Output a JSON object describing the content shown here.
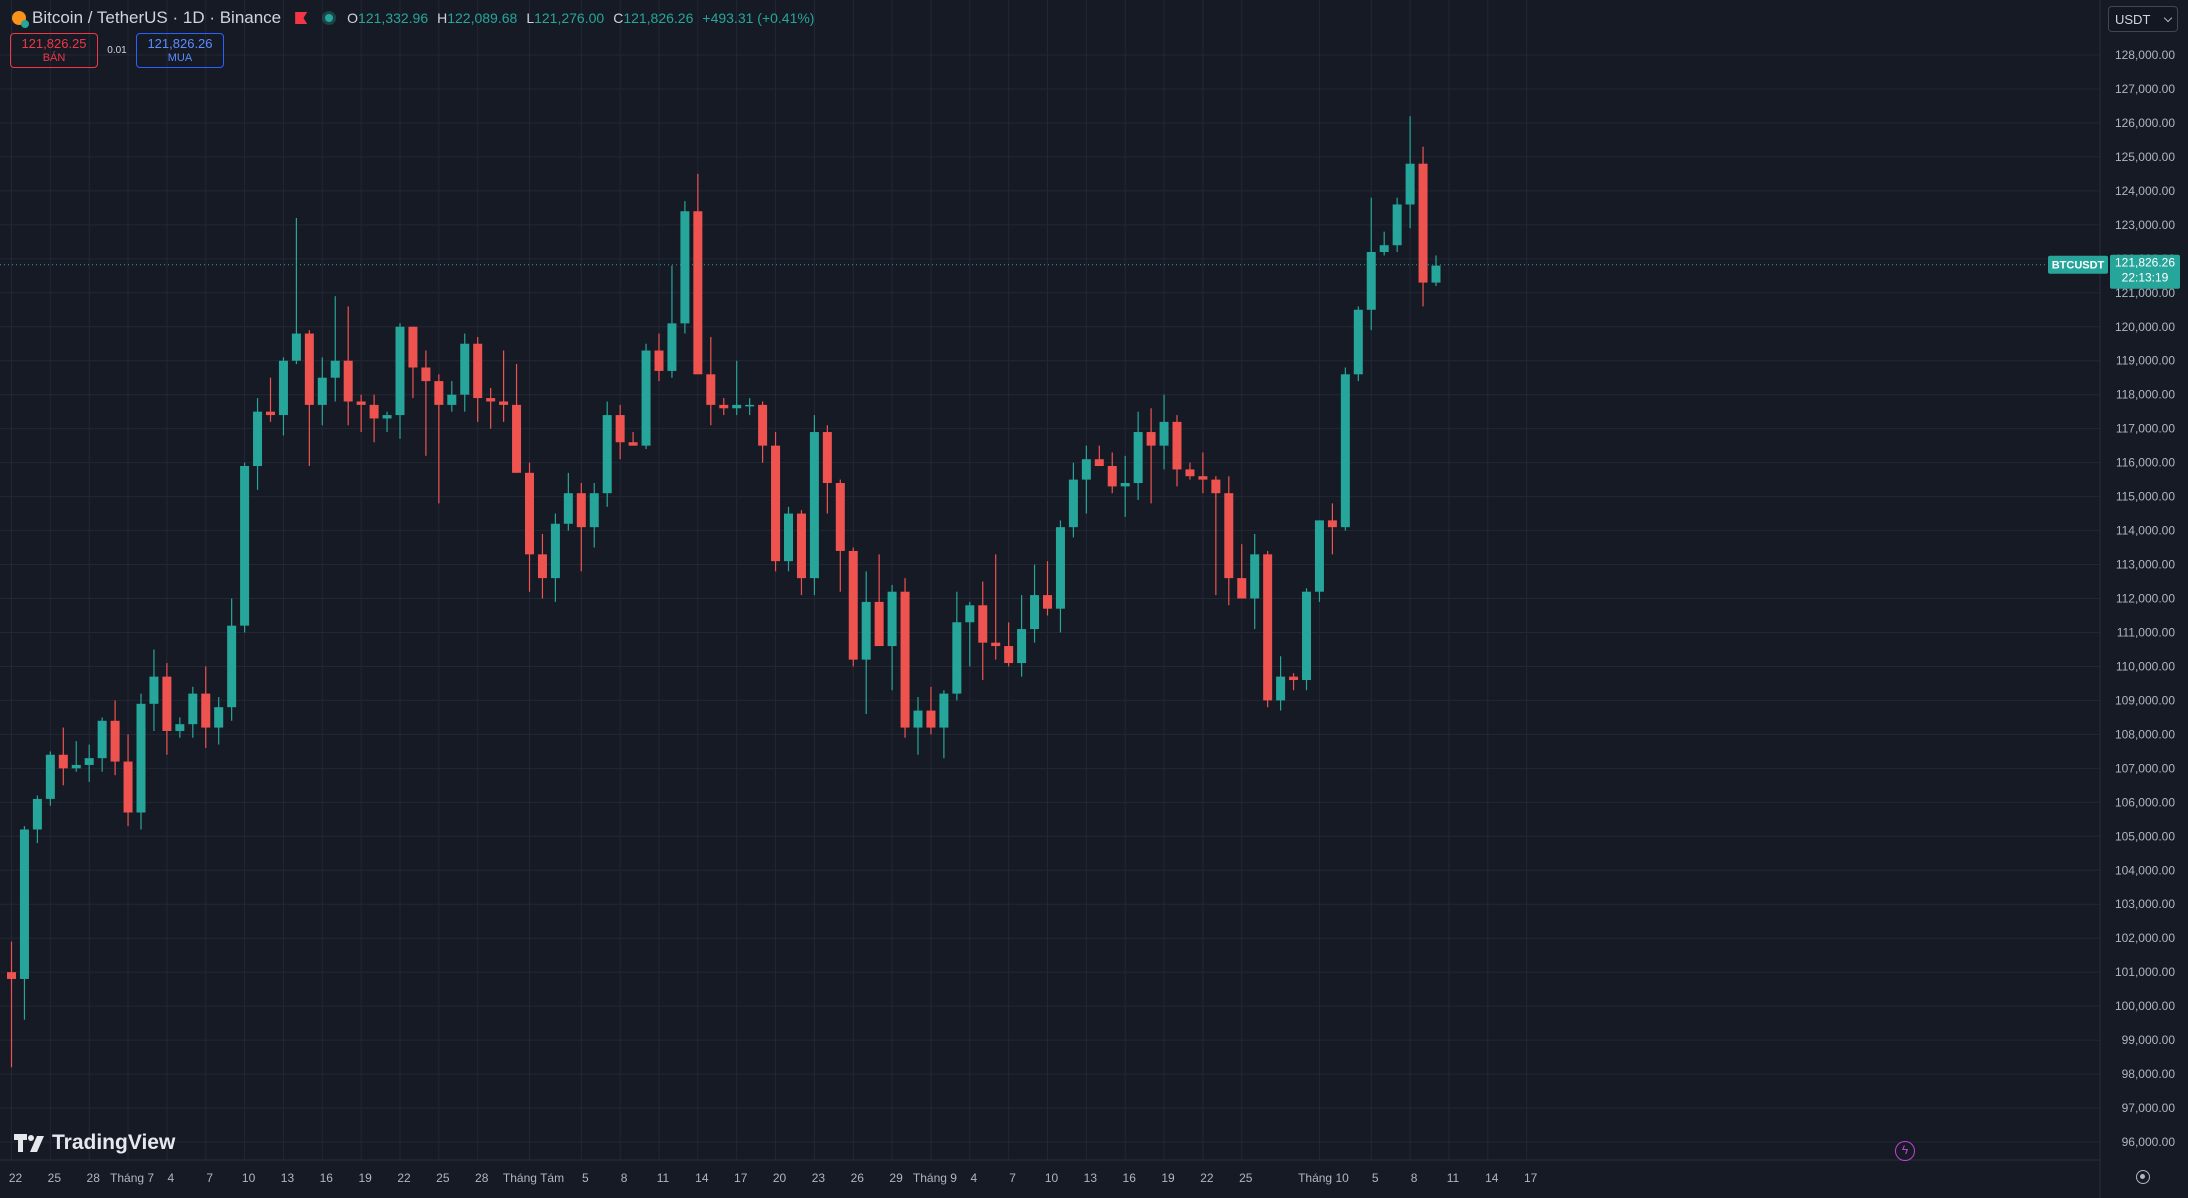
{
  "header": {
    "symbol_title": "Bitcoin / TetherUS · 1D · Binance",
    "ohlc": {
      "o_label": "O",
      "o_value": "121,332.96",
      "h_label": "H",
      "h_value": "122,089.68",
      "l_label": "L",
      "l_value": "121,276.00",
      "c_label": "C",
      "c_value": "121,826.26",
      "change": "+493.31 (+0.41%)"
    }
  },
  "trade": {
    "sell_price": "121,826.25",
    "sell_label": "BÁN",
    "spread": "0.01",
    "buy_price": "121,826.26",
    "buy_label": "MUA"
  },
  "currency_select": {
    "value": "USDT"
  },
  "last_price": {
    "ticker": "BTCUSDT",
    "price": "121,826.26",
    "countdown": "22:13:19"
  },
  "brand": {
    "name": "TradingView"
  },
  "colors": {
    "up": "#26a69a",
    "down": "#ef5350",
    "background": "#161a25",
    "grid": "#232735",
    "text": "#b2b5be"
  },
  "chart_data": {
    "type": "candlestick",
    "y_range": [
      95800,
      128600
    ],
    "y_ticks": [
      96000,
      97000,
      98000,
      99000,
      100000,
      101000,
      102000,
      103000,
      104000,
      105000,
      106000,
      107000,
      108000,
      109000,
      110000,
      111000,
      112000,
      113000,
      114000,
      115000,
      116000,
      117000,
      118000,
      119000,
      120000,
      121000,
      122000,
      123000,
      124000,
      125000,
      126000,
      127000,
      128000
    ],
    "x_ticks": [
      {
        "day": 0,
        "label": "22"
      },
      {
        "day": 3,
        "label": "25"
      },
      {
        "day": 6,
        "label": "28"
      },
      {
        "day": 9,
        "label": "Tháng 7"
      },
      {
        "day": 12,
        "label": "4"
      },
      {
        "day": 15,
        "label": "7"
      },
      {
        "day": 18,
        "label": "10"
      },
      {
        "day": 21,
        "label": "13"
      },
      {
        "day": 24,
        "label": "16"
      },
      {
        "day": 27,
        "label": "19"
      },
      {
        "day": 30,
        "label": "22"
      },
      {
        "day": 33,
        "label": "25"
      },
      {
        "day": 36,
        "label": "28"
      },
      {
        "day": 40,
        "label": "Tháng Tám"
      },
      {
        "day": 44,
        "label": "5"
      },
      {
        "day": 47,
        "label": "8"
      },
      {
        "day": 50,
        "label": "11"
      },
      {
        "day": 53,
        "label": "14"
      },
      {
        "day": 56,
        "label": "17"
      },
      {
        "day": 59,
        "label": "20"
      },
      {
        "day": 62,
        "label": "23"
      },
      {
        "day": 65,
        "label": "26"
      },
      {
        "day": 68,
        "label": "29"
      },
      {
        "day": 71,
        "label": "Tháng 9"
      },
      {
        "day": 74,
        "label": "4"
      },
      {
        "day": 77,
        "label": "7"
      },
      {
        "day": 80,
        "label": "10"
      },
      {
        "day": 83,
        "label": "13"
      },
      {
        "day": 86,
        "label": "16"
      },
      {
        "day": 89,
        "label": "19"
      },
      {
        "day": 92,
        "label": "22"
      },
      {
        "day": 95,
        "label": "25"
      },
      {
        "day": 101,
        "label": "Tháng 10"
      },
      {
        "day": 105,
        "label": "5"
      },
      {
        "day": 108,
        "label": "8"
      },
      {
        "day": 111,
        "label": "11"
      },
      {
        "day": 114,
        "label": "14"
      },
      {
        "day": 117,
        "label": "17"
      }
    ],
    "last_price_value": 121826.26,
    "candles": [
      [
        101000,
        101900,
        98200,
        100800
      ],
      [
        100800,
        105300,
        99600,
        105200
      ],
      [
        105200,
        106200,
        104800,
        106100
      ],
      [
        106100,
        107500,
        105900,
        107400
      ],
      [
        107400,
        108200,
        106500,
        107000
      ],
      [
        107000,
        107800,
        106900,
        107100
      ],
      [
        107100,
        107700,
        106600,
        107300
      ],
      [
        107300,
        108500,
        106900,
        108400
      ],
      [
        108400,
        109000,
        106800,
        107200
      ],
      [
        107200,
        108000,
        105300,
        105700
      ],
      [
        105700,
        109200,
        105200,
        108900
      ],
      [
        108900,
        110500,
        108100,
        109700
      ],
      [
        109700,
        110100,
        107400,
        108100
      ],
      [
        108100,
        108500,
        107900,
        108300
      ],
      [
        108300,
        109400,
        107900,
        109200
      ],
      [
        109200,
        110000,
        107600,
        108200
      ],
      [
        108200,
        109100,
        107700,
        108800
      ],
      [
        108800,
        112000,
        108400,
        111200
      ],
      [
        111200,
        116000,
        111000,
        115900
      ],
      [
        115900,
        117900,
        115200,
        117500
      ],
      [
        117500,
        118500,
        117200,
        117400
      ],
      [
        117400,
        119100,
        116800,
        119000
      ],
      [
        119000,
        123200,
        118900,
        119800
      ],
      [
        119800,
        119900,
        115900,
        117700
      ],
      [
        117700,
        119100,
        117100,
        118500
      ],
      [
        118500,
        120900,
        117800,
        119000
      ],
      [
        119000,
        120600,
        117100,
        117800
      ],
      [
        117800,
        118000,
        116900,
        117700
      ],
      [
        117700,
        118000,
        116600,
        117300
      ],
      [
        117300,
        117500,
        116900,
        117400
      ],
      [
        117400,
        120100,
        116700,
        120000
      ],
      [
        120000,
        120000,
        117900,
        118800
      ],
      [
        118800,
        119300,
        116200,
        118400
      ],
      [
        118400,
        118600,
        114800,
        117700
      ],
      [
        117700,
        118400,
        117500,
        118000
      ],
      [
        118000,
        119800,
        117500,
        119500
      ],
      [
        119500,
        119700,
        117200,
        117900
      ],
      [
        117900,
        118200,
        117000,
        117800
      ],
      [
        117800,
        119300,
        117200,
        117700
      ],
      [
        117700,
        118900,
        115700,
        115700
      ],
      [
        115700,
        116000,
        112200,
        113300
      ],
      [
        113300,
        113900,
        112000,
        112600
      ],
      [
        112600,
        114500,
        111900,
        114200
      ],
      [
        114200,
        115700,
        114000,
        115100
      ],
      [
        115100,
        115400,
        112800,
        114100
      ],
      [
        114100,
        115400,
        113500,
        115100
      ],
      [
        115100,
        117800,
        114700,
        117400
      ],
      [
        117400,
        117700,
        116100,
        116600
      ],
      [
        116600,
        116900,
        116500,
        116500
      ],
      [
        116500,
        119500,
        116400,
        119300
      ],
      [
        119300,
        119800,
        118400,
        118700
      ],
      [
        118700,
        121800,
        118500,
        120100
      ],
      [
        120100,
        123700,
        119800,
        123400
      ],
      [
        123400,
        124500,
        118700,
        118600
      ],
      [
        118600,
        119700,
        117100,
        117700
      ],
      [
        117700,
        117900,
        117400,
        117600
      ],
      [
        117600,
        119000,
        117400,
        117700
      ],
      [
        117700,
        117900,
        117400,
        117700
      ],
      [
        117700,
        117800,
        116000,
        116500
      ],
      [
        116500,
        116900,
        112800,
        113100
      ],
      [
        113100,
        114700,
        112800,
        114500
      ],
      [
        114500,
        114600,
        112100,
        112600
      ],
      [
        112600,
        117400,
        112100,
        116900
      ],
      [
        116900,
        117100,
        114500,
        115400
      ],
      [
        115400,
        115500,
        112200,
        113400
      ],
      [
        113400,
        113500,
        110000,
        110200
      ],
      [
        110200,
        112800,
        108600,
        111900
      ],
      [
        111900,
        113300,
        110800,
        110600
      ],
      [
        110600,
        112400,
        109300,
        112200
      ],
      [
        112200,
        112600,
        107900,
        108200
      ],
      [
        108200,
        109100,
        107400,
        108700
      ],
      [
        108700,
        109400,
        108000,
        108200
      ],
      [
        108200,
        109300,
        107300,
        109200
      ],
      [
        109200,
        112200,
        109000,
        111300
      ],
      [
        111300,
        111900,
        110000,
        111800
      ],
      [
        111800,
        112500,
        109600,
        110700
      ],
      [
        110700,
        113300,
        110200,
        110600
      ],
      [
        110600,
        111300,
        110000,
        110100
      ],
      [
        110100,
        112100,
        109700,
        111100
      ],
      [
        111100,
        113000,
        110700,
        112100
      ],
      [
        112100,
        113100,
        111500,
        111700
      ],
      [
        111700,
        114300,
        111000,
        114100
      ],
      [
        114100,
        116000,
        113800,
        115500
      ],
      [
        115500,
        116500,
        114500,
        116100
      ],
      [
        116100,
        116500,
        115900,
        115900
      ],
      [
        115900,
        116300,
        115100,
        115300
      ],
      [
        115300,
        116200,
        114400,
        115400
      ],
      [
        115400,
        117500,
        114900,
        116900
      ],
      [
        116900,
        117600,
        114800,
        116500
      ],
      [
        116500,
        118000,
        115800,
        117200
      ],
      [
        117200,
        117400,
        115300,
        115800
      ],
      [
        115800,
        116000,
        115500,
        115600
      ],
      [
        115600,
        116300,
        115100,
        115500
      ],
      [
        115500,
        115600,
        112100,
        115100
      ],
      [
        115100,
        115600,
        111800,
        112600
      ],
      [
        112600,
        113600,
        112000,
        112000
      ],
      [
        112000,
        113900,
        111100,
        113300
      ],
      [
        113300,
        113400,
        108800,
        109000
      ],
      [
        109000,
        110300,
        108700,
        109700
      ],
      [
        109700,
        109800,
        109300,
        109600
      ],
      [
        109600,
        112300,
        109300,
        112200
      ],
      [
        112200,
        114300,
        111900,
        114300
      ],
      [
        114300,
        114800,
        113300,
        114100
      ],
      [
        114100,
        118800,
        114000,
        118600
      ],
      [
        118600,
        120600,
        118400,
        120500
      ],
      [
        120500,
        123800,
        119900,
        122200
      ],
      [
        122200,
        122800,
        122100,
        122400
      ],
      [
        122400,
        123800,
        122200,
        123600
      ],
      [
        123600,
        126200,
        122900,
        124800
      ],
      [
        124800,
        125300,
        120600,
        121300
      ],
      [
        121300,
        122100,
        121200,
        121800
      ]
    ]
  }
}
